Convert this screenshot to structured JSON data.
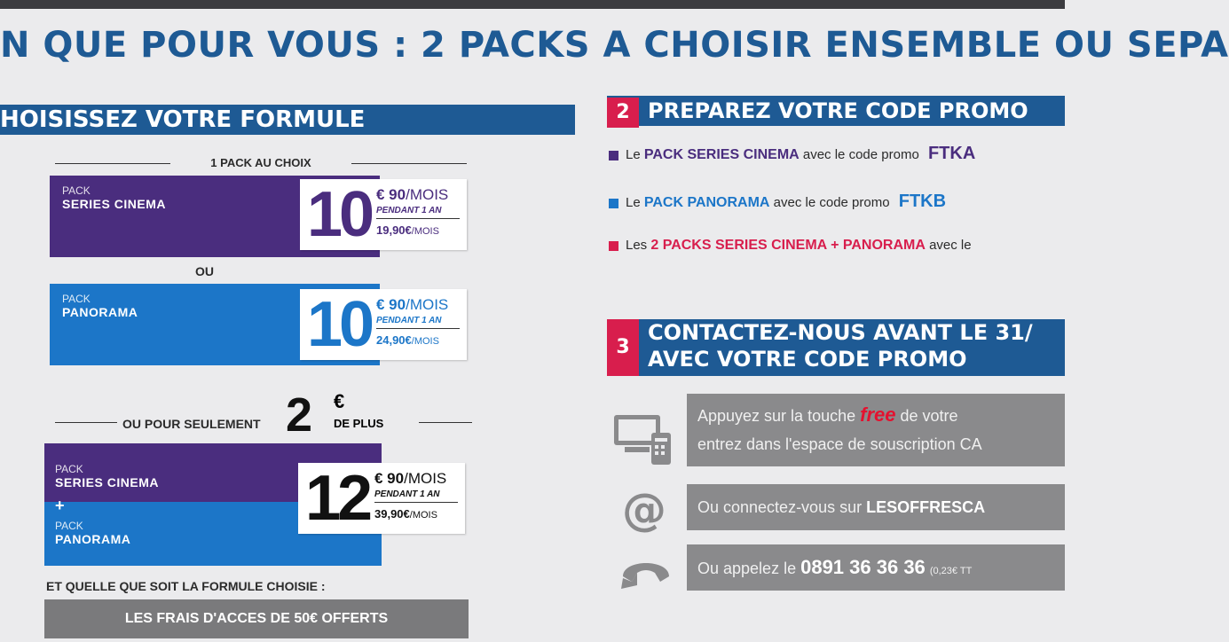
{
  "headline": "N QUE POUR VOUS : 2 PACKS A CHOISIR ENSEMBLE OU SEPA",
  "section1": {
    "title": "HOISISSEZ VOTRE FORMULE"
  },
  "section2": {
    "number": "2",
    "title": "PREPAREZ VOTRE CODE PROMO"
  },
  "section3": {
    "number": "3",
    "title_line1": "CONTACTEZ-NOUS AVANT LE 31/",
    "title_line2": "AVEC VOTRE CODE PROMO"
  },
  "offer": {
    "one_pack_label": "1 PACK AU CHOIX",
    "or_label": "OU",
    "extra_prefix": "OU POUR SEULEMENT",
    "extra_amount": "2",
    "extra_currency": "€",
    "extra_suffix": "DE PLUS",
    "footnote": "ET QUELLE QUE SOIT LA FORMULE CHOISIE :",
    "fees_text": "LES FRAIS D'ACCES DE 50€ OFFERTS"
  },
  "packs": [
    {
      "small": "PACK",
      "name": "SERIES CINEMA",
      "price_big": "10",
      "price_cents": "€ 90",
      "per_month": "/MOIS",
      "during": "PENDANT 1 AN",
      "after_price": "19,90€",
      "color": "#4a2d7e"
    },
    {
      "small": "PACK",
      "name": "PANORAMA",
      "price_big": "10",
      "price_cents": "€ 90",
      "per_month": "/MOIS",
      "during": "PENDANT 1 AN",
      "after_price": "24,90€",
      "color": "#1c76c8"
    }
  ],
  "combo": {
    "small1": "PACK",
    "name1": "SERIES CINEMA",
    "plus": "+",
    "small2": "PACK",
    "name2": "PANORAMA",
    "price_big": "12",
    "price_cents": "€ 90",
    "per_month": "/MOIS",
    "during": "PENDANT 1 AN",
    "after_price": "39,90€"
  },
  "promo": [
    {
      "prefix": "Le",
      "name": "PACK SERIES CINEMA",
      "middle": "avec le code promo",
      "code": "FTKA",
      "color": "#4a2d7e"
    },
    {
      "prefix": "Le",
      "name": "PACK PANORAMA",
      "middle": "avec le code promo",
      "code": "FTKB",
      "color": "#1c76c8"
    },
    {
      "prefix": "Les",
      "name": "2 PACKS SERIES CINEMA + PANORAMA",
      "middle": "avec le",
      "code": "",
      "color": "#d81e4d"
    }
  ],
  "contact": {
    "row1_a": "Appuyez sur la touche",
    "row1_free": "free",
    "row1_b": "de votre",
    "row1_line2": "entrez dans l'espace de souscription CA",
    "row2_a": "Ou connectez-vous sur",
    "row2_b": "LESOFFRESCA",
    "row3_a": "Ou appelez le",
    "row3_b": "0891 36 36 36",
    "row3_c": "(0,23€ TT"
  },
  "icons": {
    "tv": "tv-remote-icon",
    "at": "at-sign-icon",
    "phone": "phone-handset-icon"
  }
}
